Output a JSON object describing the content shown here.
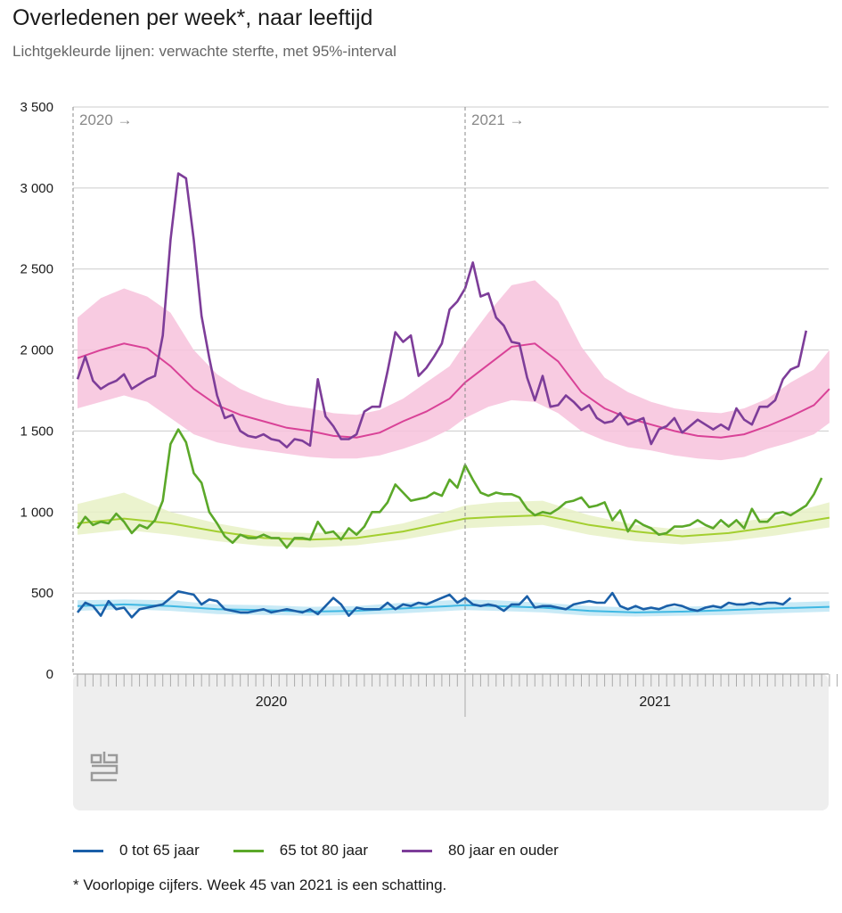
{
  "title": "Overledenen per week*, naar leeftijd",
  "subtitle": "Lichtgekleurde lijnen: verwachte sterfte, met 95%-interval",
  "footnote": "* Voorlopige cijfers. Week 45 van 2021 is een schatting.",
  "logo_icon": "cbs-logo-icon",
  "chart_data": {
    "type": "line",
    "x_unit": "week index (0 = week 1 of 2020)",
    "x_range": [
      0,
      98
    ],
    "ylim": [
      0,
      3500
    ],
    "yticks": [
      0,
      500,
      1000,
      1500,
      2000,
      2500,
      3000,
      3500
    ],
    "ytick_labels": [
      "0",
      "500",
      "1 000",
      "1 500",
      "2 000",
      "2 500",
      "3 000",
      "3 500"
    ],
    "grid": true,
    "year_labels": [
      {
        "label": "2020",
        "x_center": 25
      },
      {
        "label": "2021",
        "x_center": 74.5
      }
    ],
    "year_markers": [
      {
        "label": "2020 →",
        "x": 0
      },
      {
        "label": "2021 →",
        "x": 50
      }
    ],
    "series": [
      {
        "name": "0 tot 65 jaar",
        "color": "#1a5fa8",
        "values": [
          380,
          440,
          420,
          360,
          450,
          400,
          410,
          350,
          400,
          410,
          420,
          430,
          470,
          510,
          500,
          490,
          430,
          460,
          450,
          400,
          390,
          380,
          380,
          390,
          400,
          380,
          390,
          400,
          390,
          380,
          400,
          370,
          420,
          470,
          430,
          360,
          410,
          400,
          400,
          400,
          440,
          400,
          430,
          420,
          440,
          430,
          450,
          470,
          490,
          440,
          470,
          430,
          420,
          430,
          420,
          390,
          430,
          430,
          480,
          410,
          420,
          420,
          410,
          400,
          430,
          440,
          450,
          440,
          440,
          500,
          420,
          400,
          420,
          400,
          410,
          400,
          420,
          430,
          420,
          400,
          390,
          410,
          420,
          410,
          440,
          430,
          430,
          440,
          430,
          440,
          440,
          430,
          470
        ]
      },
      {
        "name": "65 tot 80 jaar",
        "color": "#5ba829",
        "values": [
          900,
          970,
          920,
          940,
          930,
          990,
          940,
          870,
          920,
          900,
          950,
          1070,
          1420,
          1510,
          1430,
          1240,
          1180,
          1000,
          930,
          850,
          810,
          860,
          840,
          840,
          860,
          840,
          840,
          780,
          840,
          840,
          830,
          940,
          870,
          880,
          830,
          900,
          860,
          910,
          1000,
          1000,
          1060,
          1170,
          1120,
          1070,
          1080,
          1090,
          1120,
          1100,
          1200,
          1150,
          1290,
          1200,
          1120,
          1100,
          1120,
          1110,
          1110,
          1090,
          1020,
          980,
          1000,
          990,
          1020,
          1060,
          1070,
          1090,
          1030,
          1040,
          1060,
          950,
          1010,
          880,
          950,
          920,
          900,
          860,
          870,
          910,
          910,
          920,
          950,
          920,
          900,
          950,
          910,
          950,
          900,
          1020,
          940,
          940,
          990,
          1000,
          980,
          1010,
          1040,
          1110,
          1210
        ]
      },
      {
        "name": "80 jaar en ouder",
        "color": "#7d3d99",
        "values": [
          1820,
          1960,
          1810,
          1760,
          1790,
          1810,
          1850,
          1760,
          1790,
          1820,
          1840,
          2090,
          2680,
          3090,
          3060,
          2680,
          2210,
          1950,
          1720,
          1580,
          1600,
          1500,
          1470,
          1460,
          1480,
          1450,
          1440,
          1400,
          1450,
          1440,
          1410,
          1820,
          1590,
          1530,
          1450,
          1450,
          1480,
          1620,
          1650,
          1650,
          1870,
          2110,
          2050,
          2090,
          1840,
          1890,
          1960,
          2040,
          2250,
          2300,
          2380,
          2540,
          2330,
          2350,
          2200,
          2150,
          2050,
          2040,
          1830,
          1690,
          1840,
          1650,
          1660,
          1720,
          1680,
          1630,
          1660,
          1580,
          1550,
          1560,
          1610,
          1540,
          1560,
          1580,
          1420,
          1510,
          1530,
          1580,
          1490,
          1530,
          1570,
          1540,
          1510,
          1540,
          1510,
          1640,
          1570,
          1540,
          1650,
          1650,
          1690,
          1820,
          1880,
          1900,
          2120
        ]
      }
    ],
    "expected": [
      {
        "name": "verwachte sterfte 0 tot 65 jaar",
        "color": "#3fb8e3",
        "band_color": "#bfe6f4",
        "x": [
          0,
          6,
          12,
          18,
          24,
          30,
          36,
          42,
          48,
          50,
          54,
          60,
          66,
          72,
          78,
          84,
          90,
          97
        ],
        "values": [
          420,
          430,
          420,
          400,
          395,
          385,
          390,
          405,
          420,
          425,
          420,
          410,
          390,
          380,
          385,
          395,
          405,
          415
        ],
        "lower": [
          390,
          400,
          390,
          370,
          365,
          360,
          365,
          375,
          390,
          395,
          390,
          380,
          360,
          355,
          360,
          365,
          375,
          385
        ],
        "upper": [
          455,
          460,
          455,
          430,
          425,
          415,
          420,
          440,
          455,
          460,
          455,
          440,
          420,
          410,
          415,
          425,
          440,
          450
        ]
      },
      {
        "name": "verwachte sterfte 65 tot 80 jaar",
        "color": "#a3cf2f",
        "band_color": "#e8f1c5",
        "x": [
          0,
          6,
          12,
          18,
          24,
          30,
          36,
          42,
          48,
          50,
          54,
          60,
          66,
          72,
          78,
          84,
          90,
          97
        ],
        "values": [
          930,
          960,
          930,
          880,
          840,
          830,
          840,
          880,
          940,
          960,
          970,
          980,
          920,
          880,
          850,
          870,
          910,
          965
        ],
        "lower": [
          860,
          890,
          860,
          820,
          790,
          780,
          795,
          830,
          880,
          900,
          910,
          920,
          860,
          820,
          800,
          820,
          855,
          905
        ],
        "upper": [
          1050,
          1120,
          1000,
          930,
          880,
          870,
          880,
          930,
          1010,
          1040,
          1060,
          1070,
          980,
          920,
          890,
          930,
          970,
          1060
        ]
      },
      {
        "name": "verwachte sterfte 80 jaar en ouder",
        "color": "#d94297",
        "band_color": "#f7c2dc",
        "x": [
          0,
          3,
          6,
          9,
          12,
          15,
          18,
          21,
          24,
          27,
          30,
          33,
          36,
          39,
          42,
          45,
          48,
          50,
          53,
          56,
          59,
          62,
          65,
          68,
          71,
          74,
          77,
          80,
          83,
          86,
          89,
          92,
          95,
          97
        ],
        "values": [
          1950,
          2000,
          2040,
          2010,
          1900,
          1760,
          1660,
          1600,
          1560,
          1520,
          1500,
          1470,
          1460,
          1490,
          1560,
          1620,
          1700,
          1800,
          1910,
          2020,
          2040,
          1930,
          1740,
          1640,
          1580,
          1540,
          1500,
          1470,
          1460,
          1480,
          1530,
          1590,
          1660,
          1760
        ],
        "lower": [
          1640,
          1680,
          1720,
          1680,
          1580,
          1480,
          1430,
          1400,
          1380,
          1360,
          1340,
          1330,
          1330,
          1350,
          1390,
          1440,
          1510,
          1580,
          1650,
          1690,
          1680,
          1610,
          1500,
          1440,
          1400,
          1380,
          1350,
          1330,
          1320,
          1340,
          1390,
          1430,
          1480,
          1550
        ],
        "upper": [
          2200,
          2320,
          2380,
          2330,
          2230,
          2000,
          1850,
          1760,
          1700,
          1660,
          1640,
          1610,
          1600,
          1630,
          1700,
          1800,
          1900,
          2040,
          2230,
          2400,
          2430,
          2300,
          2020,
          1830,
          1740,
          1680,
          1640,
          1620,
          1610,
          1640,
          1700,
          1800,
          1880,
          2000
        ]
      }
    ]
  },
  "legend": [
    {
      "label": "0 tot 65 jaar",
      "color": "#1a5fa8"
    },
    {
      "label": "65 tot 80 jaar",
      "color": "#5ba829"
    },
    {
      "label": "80 jaar en ouder",
      "color": "#7d3d99"
    }
  ]
}
